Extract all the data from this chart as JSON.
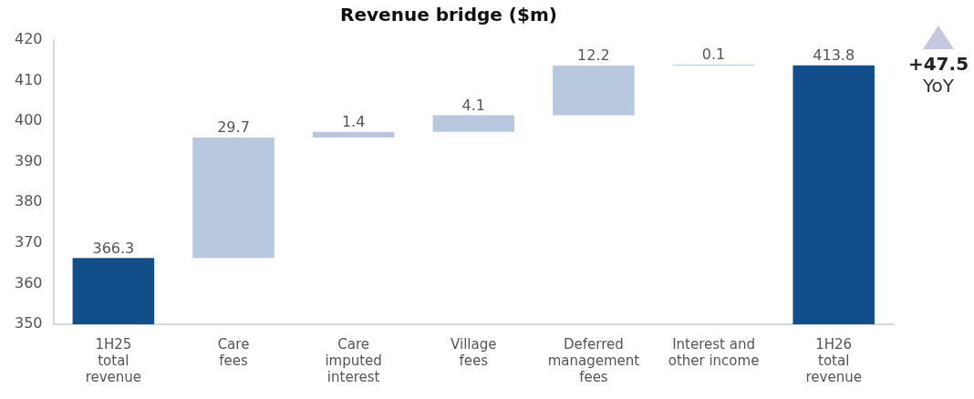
{
  "chart_data": {
    "type": "bar",
    "title": "Revenue bridge ($m)",
    "categories": [
      "1H25\ntotal\nrevenue",
      "Care\nfees",
      "Care\nimputed\ninterest",
      "Village\nfees",
      "Deferred\nmanagement\nfees",
      "Interest and\nother income",
      "1H26\ntotal\nrevenue"
    ],
    "values": [
      366.3,
      29.7,
      1.4,
      4.1,
      12.2,
      0.1,
      413.8
    ],
    "base": [
      null,
      366.3,
      396.0,
      397.4,
      401.5,
      413.7,
      null
    ],
    "colors": [
      "#124e8c",
      "#b8c8de",
      "#b8c8de",
      "#b8c8de",
      "#b8c8de",
      "#b8c8de",
      "#124e8c"
    ],
    "ylim": [
      350,
      420
    ],
    "yticks": [
      350,
      360,
      370,
      380,
      390,
      400,
      410,
      420
    ],
    "grid": false,
    "legend": false,
    "data_labels": true,
    "annotations": [
      "+47.5",
      "YoY"
    ]
  }
}
